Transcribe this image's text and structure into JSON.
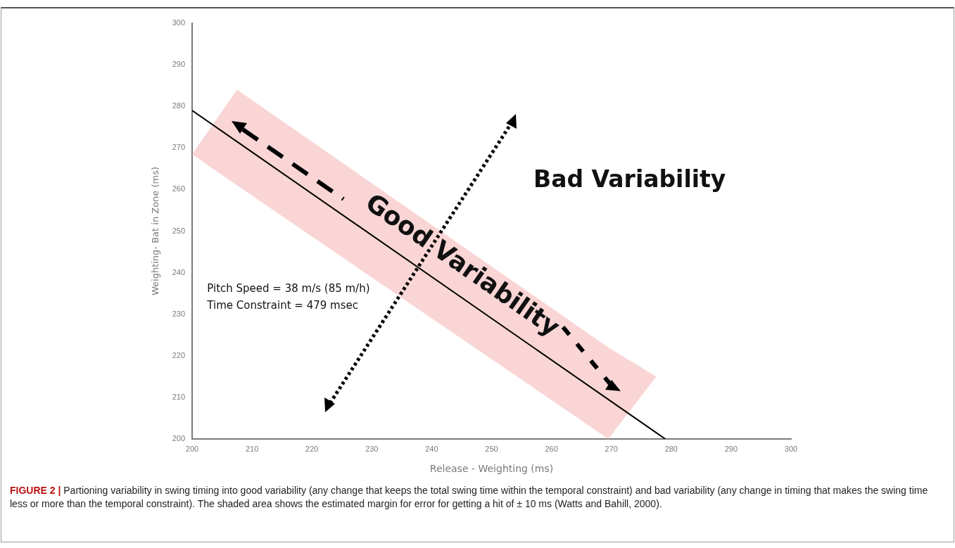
{
  "chart_data": {
    "type": "line",
    "xlabel": "Release - Weighting (ms)",
    "ylabel": "Weighting- Bat in Zone (ms)",
    "x": [
      200,
      207.5,
      269.5,
      277.5,
      279
    ],
    "series": [
      {
        "color": "#000000",
        "values": [
          279,
          271.5,
          209.5,
          201.5,
          200
        ],
        "lower": [
          268.5,
          261,
          200,
          215,
          null
        ],
        "upper": [
          268.5,
          284,
          222,
          215,
          null
        ]
      }
    ],
    "xlim": [
      200,
      300
    ],
    "ylim": [
      200,
      300
    ],
    "xticks": [
      200,
      210,
      220,
      230,
      240,
      250,
      260,
      270,
      280,
      290,
      300
    ],
    "yticks": [
      200,
      210,
      220,
      230,
      240,
      250,
      260,
      270,
      280,
      290,
      300
    ],
    "grid": false,
    "marker": "none",
    "line_style": "solid",
    "annotations": [
      "Good Variability",
      "Bad Variability",
      "Pitch Speed = 38 m/s (85 m/h)",
      "Time Constraint = 479 msec",
      "FIGURE 2 | Partioning variability in swing timing into good variability (any change that keeps the total swing time within the temporal constraint) and bad variability (any change in timing that makes the swing time less or more than the temporal constraint). The shaded area shows the estimated margin for error for getting a hit of ± 10 ms (Watts and Bahill, 2000)."
    ]
  }
}
